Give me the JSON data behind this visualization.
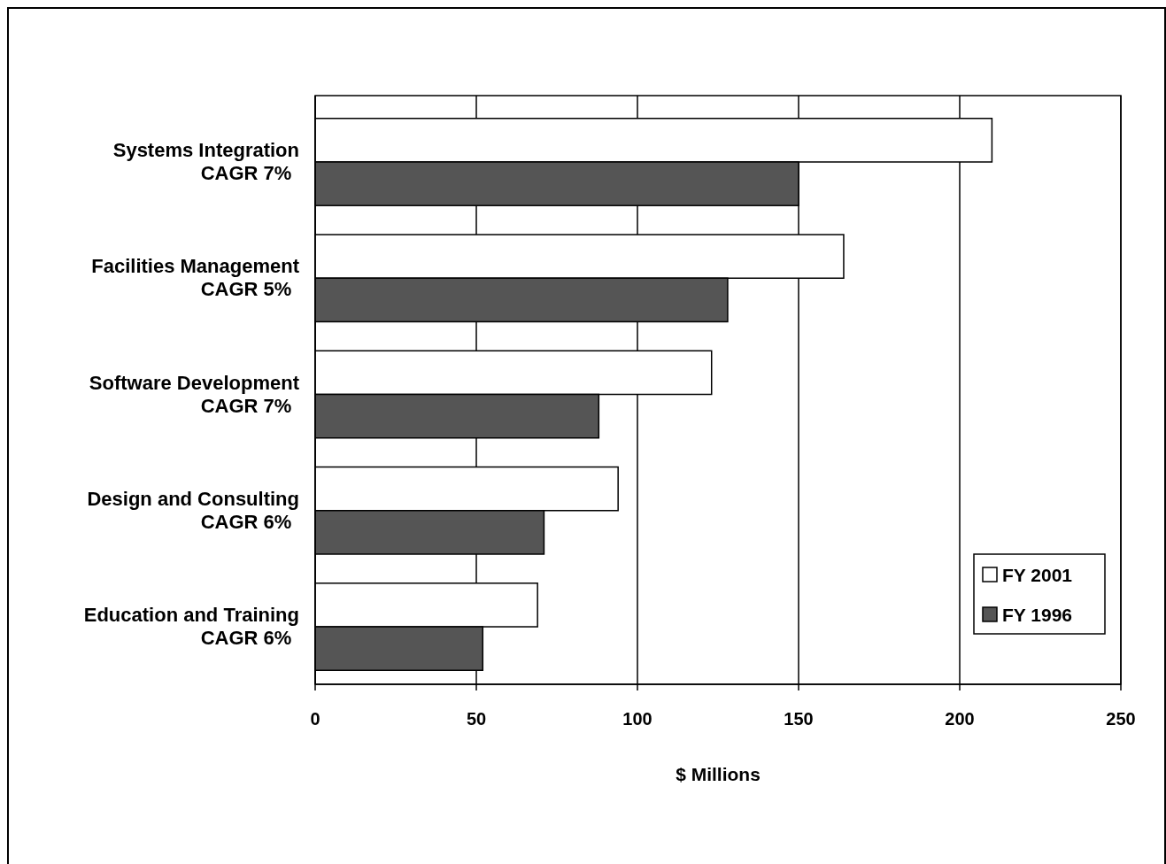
{
  "chart_data": {
    "type": "bar",
    "orientation": "horizontal",
    "xlabel": "$ Millions",
    "categories": [
      "Systems Integration\nCAGR 7%",
      "Facilities Management\nCAGR 5%",
      "Software Development\nCAGR 7%",
      "Design and Consulting\nCAGR 6%",
      "Education and Training\nCAGR 6%"
    ],
    "series": [
      {
        "name": "FY 2001",
        "color": "#ffffff",
        "values": [
          210,
          164,
          123,
          94,
          69
        ]
      },
      {
        "name": "FY 1996",
        "color": "#555555",
        "values": [
          150,
          128,
          88,
          71,
          52
        ]
      }
    ],
    "xlim": [
      0,
      250
    ],
    "xticks": [
      0,
      50,
      100,
      150,
      200,
      250
    ],
    "grid": "x",
    "legend": "bottom right"
  }
}
